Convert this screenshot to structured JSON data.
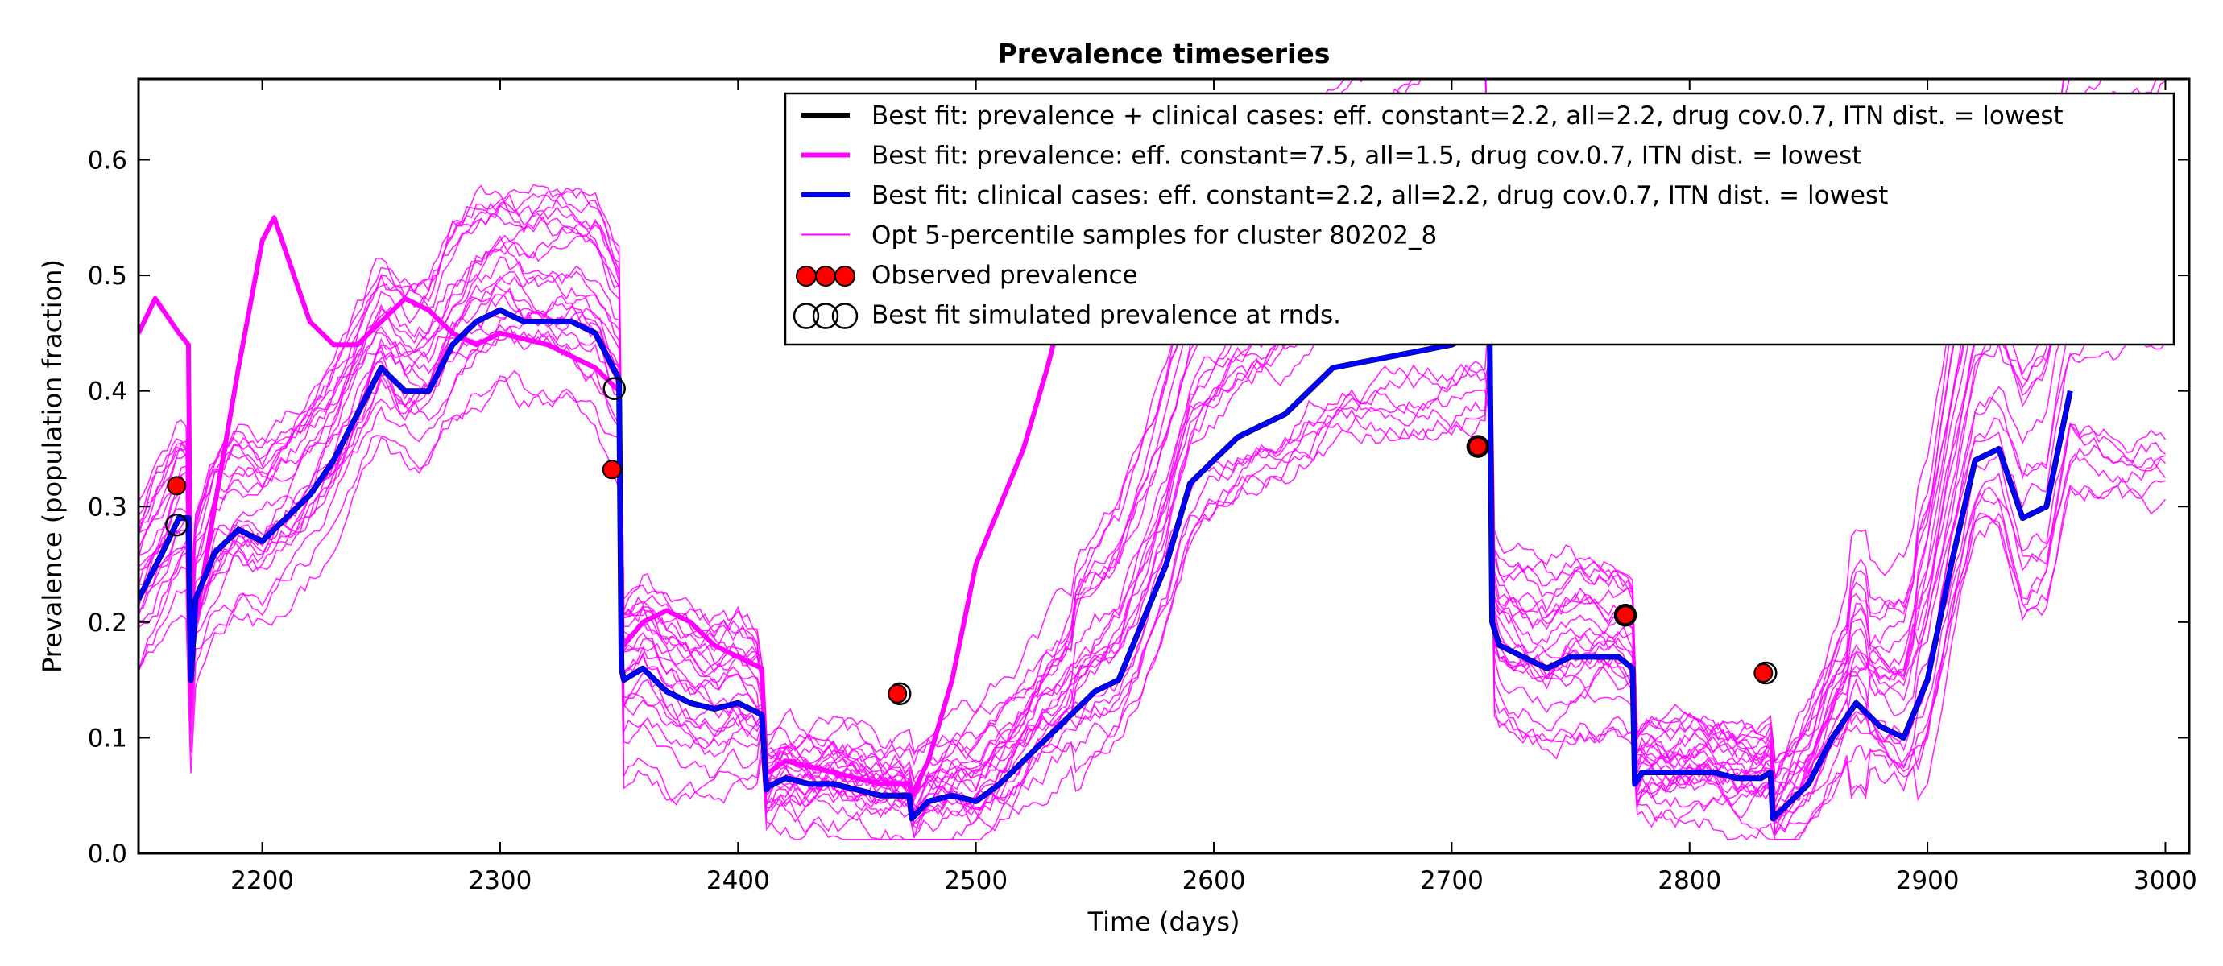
{
  "chart_data": {
    "type": "line",
    "title": "Prevalence timeseries",
    "xlabel": "Time (days)",
    "ylabel": "Prevalence (population fraction)",
    "xlim": [
      2148,
      3010
    ],
    "ylim": [
      0.0,
      0.67
    ],
    "x_ticks": [
      2200,
      2300,
      2400,
      2500,
      2600,
      2700,
      2800,
      2900,
      3000
    ],
    "y_ticks": [
      0.0,
      0.1,
      0.2,
      0.3,
      0.4,
      0.5,
      0.6
    ],
    "x_tick_labels": [
      "2200",
      "2300",
      "2400",
      "2500",
      "2600",
      "2700",
      "2800",
      "2900",
      "3000"
    ],
    "y_tick_labels": [
      "0.0",
      "0.1",
      "0.2",
      "0.3",
      "0.4",
      "0.5",
      "0.6"
    ],
    "grid": false,
    "legend_position": "top-right",
    "legend": [
      {
        "label": "Best fit: prevalence + clinical cases: eff. constant=2.2, all=2.2, drug cov.0.7, ITN dist. = lowest",
        "kind": "line",
        "color": "#000000",
        "width": 6
      },
      {
        "label": "Best fit: prevalence: eff. constant=7.5, all=1.5, drug cov.0.7, ITN dist. = lowest",
        "kind": "line",
        "color": "#ff00ff",
        "width": 6
      },
      {
        "label": "Best fit: clinical cases: eff. constant=2.2, all=2.2, drug cov.0.7, ITN dist. = lowest",
        "kind": "line",
        "color": "#0000ff",
        "width": 6
      },
      {
        "label": "Opt 5-percentile samples for cluster 80202_8",
        "kind": "line",
        "color": "#ff00ff",
        "width": 2
      },
      {
        "label": "Observed prevalence",
        "kind": "filled-markers",
        "color": "#ff0000"
      },
      {
        "label": "Best fit simulated prevalence at rnds.",
        "kind": "open-markers",
        "color": "#000000"
      }
    ],
    "colors": {
      "best_fit_both": "#000000",
      "best_fit_prevalence": "#ff00ff",
      "best_fit_clinical": "#0000ff",
      "samples": "#ff00ff",
      "observed": "#ff0000"
    },
    "series": [
      {
        "name": "Best fit: clinical cases: eff. constant=2.2, all=2.2, drug cov.0.7, ITN dist. = lowest",
        "role": "best_fit_clinical",
        "x": [
          2148,
          2158,
          2165,
          2169,
          2170,
          2172,
          2180,
          2190,
          2200,
          2210,
          2220,
          2230,
          2240,
          2250,
          2260,
          2270,
          2280,
          2290,
          2300,
          2310,
          2320,
          2330,
          2340,
          2350,
          2351,
          2352,
          2360,
          2370,
          2380,
          2390,
          2400,
          2410,
          2412,
          2413,
          2420,
          2430,
          2440,
          2450,
          2460,
          2470,
          2472,
          2473,
          2480,
          2490,
          2500,
          2510,
          2520,
          2530,
          2540,
          2550,
          2560,
          2570,
          2580,
          2590,
          2600,
          2610,
          2620,
          2630,
          2640,
          2650,
          2700,
          2710,
          2716,
          2717,
          2720,
          2730,
          2740,
          2750,
          2760,
          2770,
          2776,
          2777,
          2780,
          2790,
          2800,
          2810,
          2820,
          2830,
          2834,
          2835,
          2840,
          2850,
          2860,
          2870,
          2880,
          2890,
          2900,
          2910,
          2920,
          2930,
          2940,
          2950,
          2960
        ],
        "y": [
          0.22,
          0.26,
          0.29,
          0.29,
          0.15,
          0.22,
          0.26,
          0.28,
          0.27,
          0.29,
          0.31,
          0.34,
          0.38,
          0.42,
          0.4,
          0.4,
          0.44,
          0.46,
          0.47,
          0.46,
          0.46,
          0.46,
          0.45,
          0.41,
          0.16,
          0.15,
          0.16,
          0.14,
          0.13,
          0.125,
          0.13,
          0.12,
          0.055,
          0.058,
          0.065,
          0.06,
          0.06,
          0.055,
          0.05,
          0.05,
          0.05,
          0.03,
          0.045,
          0.05,
          0.045,
          0.06,
          0.08,
          0.1,
          0.12,
          0.14,
          0.15,
          0.2,
          0.25,
          0.32,
          0.34,
          0.36,
          0.37,
          0.38,
          0.4,
          0.42,
          0.44,
          0.45,
          0.45,
          0.2,
          0.18,
          0.17,
          0.16,
          0.17,
          0.17,
          0.17,
          0.16,
          0.06,
          0.07,
          0.07,
          0.07,
          0.07,
          0.065,
          0.065,
          0.07,
          0.03,
          0.04,
          0.06,
          0.1,
          0.13,
          0.11,
          0.1,
          0.15,
          0.25,
          0.34,
          0.35,
          0.29,
          0.3,
          0.4
        ]
      },
      {
        "name": "Best fit: prevalence + clinical cases: eff. constant=2.2, all=2.2, drug cov.0.7, ITN dist. = lowest",
        "role": "best_fit_both",
        "x": [
          2148,
          2158,
          2165,
          2169,
          2170,
          2172,
          2180,
          2190,
          2200,
          2210,
          2220,
          2230,
          2240,
          2250,
          2260,
          2270,
          2280,
          2290,
          2300,
          2310,
          2320,
          2330,
          2340,
          2350,
          2351,
          2352,
          2360,
          2370,
          2380,
          2390,
          2400,
          2410,
          2412,
          2413,
          2420,
          2430,
          2440,
          2450,
          2460,
          2470,
          2472,
          2473,
          2480,
          2490,
          2500,
          2510,
          2520,
          2530,
          2540,
          2550,
          2560,
          2570,
          2580,
          2590,
          2600,
          2610,
          2620,
          2630,
          2640,
          2650,
          2700,
          2710,
          2716,
          2717,
          2720,
          2730,
          2740,
          2750,
          2760,
          2770,
          2776,
          2777,
          2780,
          2790,
          2800,
          2810,
          2820,
          2830,
          2834,
          2835,
          2840,
          2850,
          2860,
          2870,
          2880,
          2890,
          2900,
          2910,
          2920,
          2930,
          2940,
          2950,
          2960
        ],
        "y": [
          0.22,
          0.26,
          0.29,
          0.29,
          0.15,
          0.22,
          0.26,
          0.28,
          0.27,
          0.29,
          0.31,
          0.34,
          0.38,
          0.42,
          0.4,
          0.4,
          0.44,
          0.46,
          0.47,
          0.46,
          0.46,
          0.46,
          0.45,
          0.41,
          0.16,
          0.15,
          0.16,
          0.14,
          0.13,
          0.125,
          0.13,
          0.12,
          0.055,
          0.058,
          0.065,
          0.06,
          0.06,
          0.055,
          0.05,
          0.05,
          0.05,
          0.03,
          0.045,
          0.05,
          0.045,
          0.06,
          0.08,
          0.1,
          0.12,
          0.14,
          0.15,
          0.2,
          0.25,
          0.32,
          0.34,
          0.36,
          0.37,
          0.38,
          0.4,
          0.42,
          0.44,
          0.45,
          0.45,
          0.2,
          0.18,
          0.17,
          0.16,
          0.17,
          0.17,
          0.17,
          0.16,
          0.06,
          0.07,
          0.07,
          0.07,
          0.07,
          0.065,
          0.065,
          0.07,
          0.03,
          0.04,
          0.06,
          0.1,
          0.13,
          0.11,
          0.1,
          0.15,
          0.25,
          0.34,
          0.35,
          0.29,
          0.3,
          0.4
        ]
      },
      {
        "name": "Best fit: prevalence: eff. constant=7.5, all=1.5, drug cov.0.7, ITN dist. = lowest",
        "role": "best_fit_prevalence",
        "x": [
          2148,
          2155,
          2165,
          2169,
          2170,
          2172,
          2180,
          2190,
          2200,
          2205,
          2210,
          2220,
          2230,
          2240,
          2250,
          2260,
          2270,
          2280,
          2290,
          2300,
          2320,
          2340,
          2350,
          2351,
          2352,
          2360,
          2370,
          2380,
          2390,
          2400,
          2410,
          2412,
          2413,
          2420,
          2440,
          2460,
          2470,
          2472,
          2473,
          2480,
          2490,
          2500,
          2510,
          2520,
          2530,
          2540
        ],
        "y": [
          0.45,
          0.48,
          0.45,
          0.44,
          0.16,
          0.2,
          0.3,
          0.42,
          0.53,
          0.55,
          0.52,
          0.46,
          0.44,
          0.44,
          0.46,
          0.48,
          0.47,
          0.45,
          0.44,
          0.45,
          0.44,
          0.42,
          0.4,
          0.19,
          0.18,
          0.2,
          0.21,
          0.2,
          0.18,
          0.17,
          0.16,
          0.07,
          0.07,
          0.08,
          0.07,
          0.06,
          0.06,
          0.06,
          0.05,
          0.08,
          0.15,
          0.25,
          0.3,
          0.35,
          0.42,
          0.5
        ]
      }
    ],
    "sample_series": {
      "name": "Opt 5-percentile samples for cluster 80202_8",
      "role": "samples",
      "count": 24
    },
    "observed_prevalence": {
      "x": [
        2164,
        2347,
        2467,
        2711,
        2773,
        2831
      ],
      "y": [
        0.318,
        0.332,
        0.138,
        0.352,
        0.206,
        0.156
      ]
    },
    "best_fit_at_rounds": {
      "x": [
        2164,
        2348,
        2468,
        2711,
        2773,
        2832
      ],
      "y": [
        0.284,
        0.402,
        0.138,
        0.352,
        0.206,
        0.156
      ]
    }
  }
}
